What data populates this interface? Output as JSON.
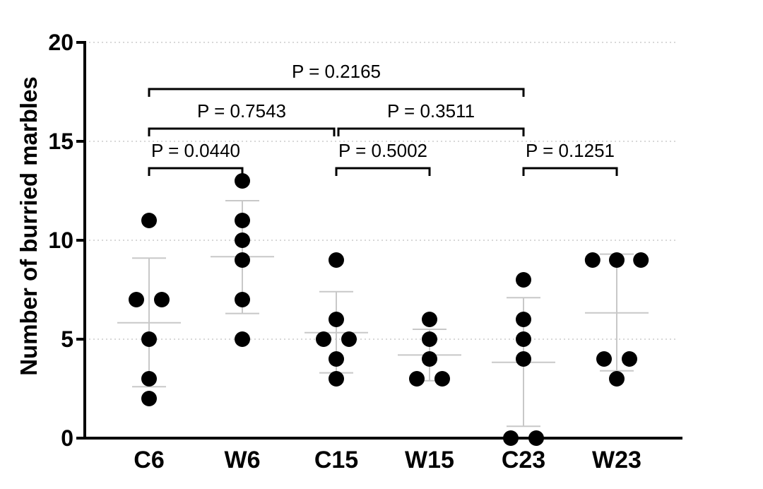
{
  "chart_data": {
    "type": "scatter",
    "ylabel": "Number of burried marbles",
    "xlabel": "",
    "ylim": [
      0,
      20
    ],
    "yticks": [
      0,
      5,
      10,
      15,
      20
    ],
    "grid": "horizontal dotted",
    "categories": [
      "C6",
      "W6",
      "C15",
      "W15",
      "C23",
      "W23"
    ],
    "groups": [
      {
        "name": "C6",
        "points": [
          11,
          7,
          7,
          5,
          3,
          2
        ],
        "mean": 5.83,
        "sd_low": 2.6,
        "sd_high": 9.1
      },
      {
        "name": "W6",
        "points": [
          13,
          11,
          10,
          9,
          7,
          5
        ],
        "mean": 9.17,
        "sd_low": 6.3,
        "sd_high": 12.0
      },
      {
        "name": "C15",
        "points": [
          9,
          6,
          5,
          5,
          4,
          3
        ],
        "mean": 5.33,
        "sd_low": 3.3,
        "sd_high": 7.4
      },
      {
        "name": "W15",
        "points": [
          6,
          5,
          4,
          3,
          3
        ],
        "mean": 4.2,
        "sd_low": 2.9,
        "sd_high": 5.5
      },
      {
        "name": "C23",
        "points": [
          8,
          6,
          5,
          4,
          0,
          0
        ],
        "mean": 3.83,
        "sd_low": 0.6,
        "sd_high": 7.1
      },
      {
        "name": "W23",
        "points": [
          9,
          9,
          9,
          4,
          4,
          3
        ],
        "mean": 6.33,
        "sd_low": 3.4,
        "sd_high": 9.3
      }
    ],
    "comparisons": [
      {
        "from": "C6",
        "to": "W6",
        "label": "P = 0.0440"
      },
      {
        "from": "C15",
        "to": "W15",
        "label": "P = 0.5002"
      },
      {
        "from": "C23",
        "to": "W23",
        "label": "P = 0.1251"
      },
      {
        "from": "C6",
        "to": "C15",
        "label": "P = 0.7543"
      },
      {
        "from": "C15",
        "to": "C23",
        "label": "P = 0.3511"
      },
      {
        "from": "C6",
        "to": "C23",
        "label": "P = 0.2165"
      }
    ],
    "colors": {
      "points": "#000000",
      "error_bars": "#c8c8c8",
      "axis": "#000000",
      "grid": "#cccccc"
    }
  }
}
